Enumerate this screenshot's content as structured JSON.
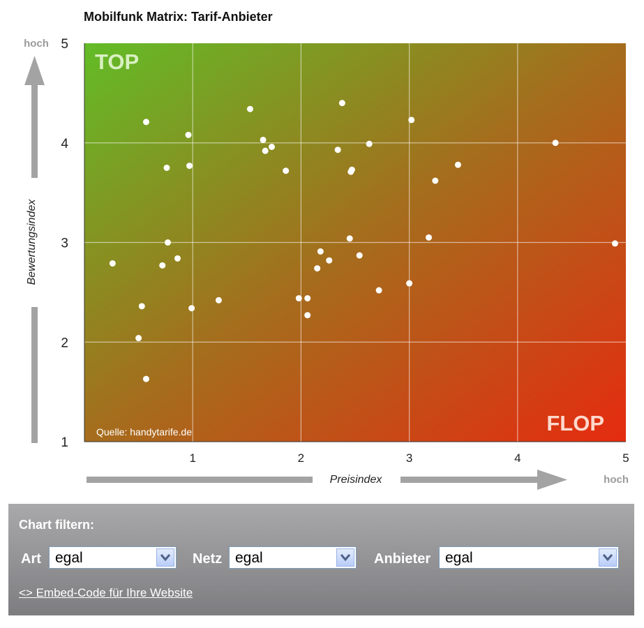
{
  "chart_data": {
    "type": "scatter",
    "title": "Mobilfunk Matrix: Tarif-Anbieter",
    "xlabel": "Preisindex",
    "ylabel": "Bewertungsindex",
    "xlim": [
      0,
      5
    ],
    "ylim": [
      1,
      5
    ],
    "x_ticks": [
      "1",
      "2",
      "3",
      "4",
      "5"
    ],
    "y_ticks": [
      "1",
      "2",
      "3",
      "4",
      "5"
    ],
    "x_axis_end_label": "hoch",
    "y_axis_end_label": "hoch",
    "quadrant_labels": {
      "top_left": "TOP",
      "bottom_right": "FLOP"
    },
    "source_label": "Quelle: handytarife.de",
    "grid": true,
    "points": [
      {
        "x": 0.26,
        "y": 2.79
      },
      {
        "x": 0.5,
        "y": 2.04
      },
      {
        "x": 0.53,
        "y": 2.36
      },
      {
        "x": 0.57,
        "y": 1.63
      },
      {
        "x": 0.57,
        "y": 4.21
      },
      {
        "x": 0.72,
        "y": 2.77
      },
      {
        "x": 0.76,
        "y": 3.75
      },
      {
        "x": 0.77,
        "y": 3.0
      },
      {
        "x": 0.86,
        "y": 2.84
      },
      {
        "x": 0.96,
        "y": 4.08
      },
      {
        "x": 0.97,
        "y": 3.77
      },
      {
        "x": 0.99,
        "y": 2.34
      },
      {
        "x": 1.24,
        "y": 2.42
      },
      {
        "x": 1.53,
        "y": 4.34
      },
      {
        "x": 1.65,
        "y": 4.03
      },
      {
        "x": 1.67,
        "y": 3.92
      },
      {
        "x": 1.73,
        "y": 3.96
      },
      {
        "x": 1.86,
        "y": 3.72
      },
      {
        "x": 1.98,
        "y": 2.44
      },
      {
        "x": 2.06,
        "y": 2.44
      },
      {
        "x": 2.06,
        "y": 2.27
      },
      {
        "x": 2.15,
        "y": 2.74
      },
      {
        "x": 2.18,
        "y": 2.91
      },
      {
        "x": 2.26,
        "y": 2.82
      },
      {
        "x": 2.34,
        "y": 3.93
      },
      {
        "x": 2.38,
        "y": 4.4
      },
      {
        "x": 2.45,
        "y": 3.04
      },
      {
        "x": 2.46,
        "y": 3.71
      },
      {
        "x": 2.47,
        "y": 3.73
      },
      {
        "x": 2.54,
        "y": 2.87
      },
      {
        "x": 2.63,
        "y": 3.99
      },
      {
        "x": 2.72,
        "y": 2.52
      },
      {
        "x": 3.0,
        "y": 2.59
      },
      {
        "x": 3.02,
        "y": 4.23
      },
      {
        "x": 3.18,
        "y": 3.05
      },
      {
        "x": 3.24,
        "y": 3.62
      },
      {
        "x": 3.45,
        "y": 3.78
      },
      {
        "x": 4.35,
        "y": 4.0
      },
      {
        "x": 4.9,
        "y": 2.99
      }
    ]
  },
  "filter": {
    "title": "Chart filtern:",
    "art_label": "Art",
    "art_value": "egal",
    "netz_label": "Netz",
    "netz_value": "egal",
    "anbieter_label": "Anbieter",
    "anbieter_value": "egal",
    "embed_link": "<> Embed-Code für Ihre Website"
  }
}
